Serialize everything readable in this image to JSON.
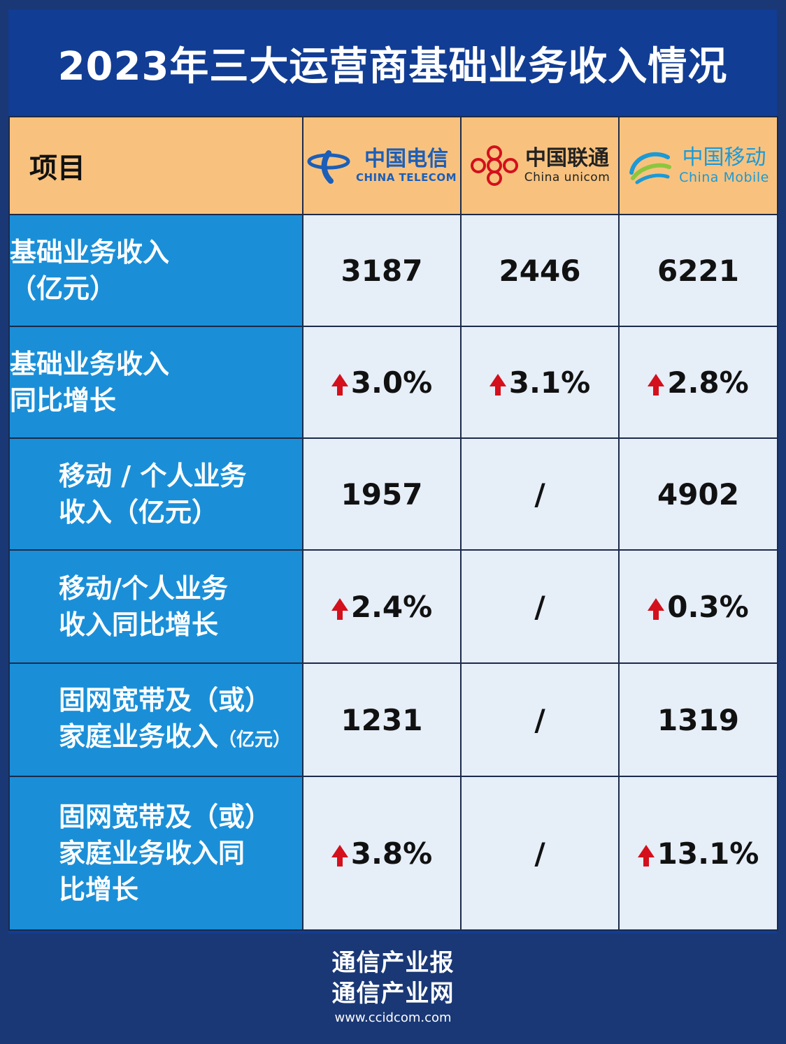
{
  "title": "2023年三大运营商基础业务收入情况",
  "header": {
    "item": "项目",
    "operators": [
      {
        "cn": "中国电信",
        "en": "CHINA TELECOM",
        "color": "#1c5eb8",
        "logo_icon": "china-telecom-logo"
      },
      {
        "cn": "中国联通",
        "en": "China unicom",
        "color": "#d3101c",
        "logo_icon": "china-unicom-logo"
      },
      {
        "cn": "中国移动",
        "en": "China Mobile",
        "color": "#1b9ad6",
        "logo_icon": "china-mobile-logo"
      }
    ]
  },
  "rows": [
    {
      "label1": "基础业务收入",
      "label2": "（亿元）",
      "label3": "",
      "telecom": "3187",
      "unicom": "2446",
      "mobile": "6221"
    },
    {
      "label1": "基础业务收入",
      "label2": "同比增长",
      "label3": "",
      "telecom": "3.0%",
      "unicom": "3.1%",
      "mobile": "2.8%"
    },
    {
      "label1": "移动 / 个人业务",
      "label2": "收入（亿元）",
      "label3": "",
      "telecom": "1957",
      "unicom": "/",
      "mobile": "4902"
    },
    {
      "label1": "移动/个人业务",
      "label2": "收入同比增长",
      "label3": "",
      "telecom": "2.4%",
      "unicom": "/",
      "mobile": "0.3%"
    },
    {
      "label1": "固网宽带及（或）",
      "label2": "家庭业务收入",
      "label2_small": "（亿元）",
      "label3": "",
      "telecom": "1231",
      "unicom": "/",
      "mobile": "1319"
    },
    {
      "label1": "固网宽带及（或）",
      "label2": "家庭业务收入同",
      "label3": "比增长",
      "telecom": "3.8%",
      "unicom": "/",
      "mobile": "13.1%"
    }
  ],
  "footer": {
    "line1": "通信产业报",
    "line2": "通信产业网",
    "url": "www.ccidcom.com"
  },
  "colors": {
    "background": "#1a3876",
    "frame": "#123d94",
    "header_row": "#f8c27e",
    "label_cell": "#1a8fd8",
    "value_cell": "#e6eef8",
    "up_arrow": "#d3101c"
  }
}
